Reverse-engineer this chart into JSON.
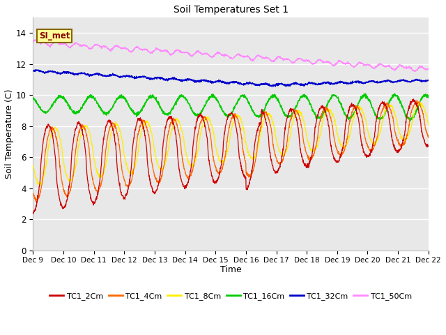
{
  "title": "Soil Temperatures Set 1",
  "xlabel": "Time",
  "ylabel": "Soil Temperature (C)",
  "ylim": [
    0,
    15
  ],
  "yticks": [
    0,
    2,
    4,
    6,
    8,
    10,
    12,
    14
  ],
  "x_labels": [
    "Dec 9",
    "Dec 10",
    "Dec 11",
    "Dec 12",
    "Dec 13",
    "Dec 14",
    "Dec 15",
    "Dec 16",
    "Dec 17",
    "Dec 18",
    "Dec 19",
    "Dec 20",
    "Dec 21",
    "Dec 22"
  ],
  "colors": {
    "TC1_2Cm": "#cc0000",
    "TC1_4Cm": "#ff6600",
    "TC1_8Cm": "#ffee00",
    "TC1_16Cm": "#00cc00",
    "TC1_32Cm": "#0000cc",
    "TC1_50Cm": "#ff88ff"
  },
  "bg_color": "#e8e8e8",
  "grid_color": "#ffffff",
  "annotation_text": "SI_met",
  "annotation_bg": "#ffff99",
  "annotation_border": "#886600",
  "n_days": 13,
  "ppd": 144
}
